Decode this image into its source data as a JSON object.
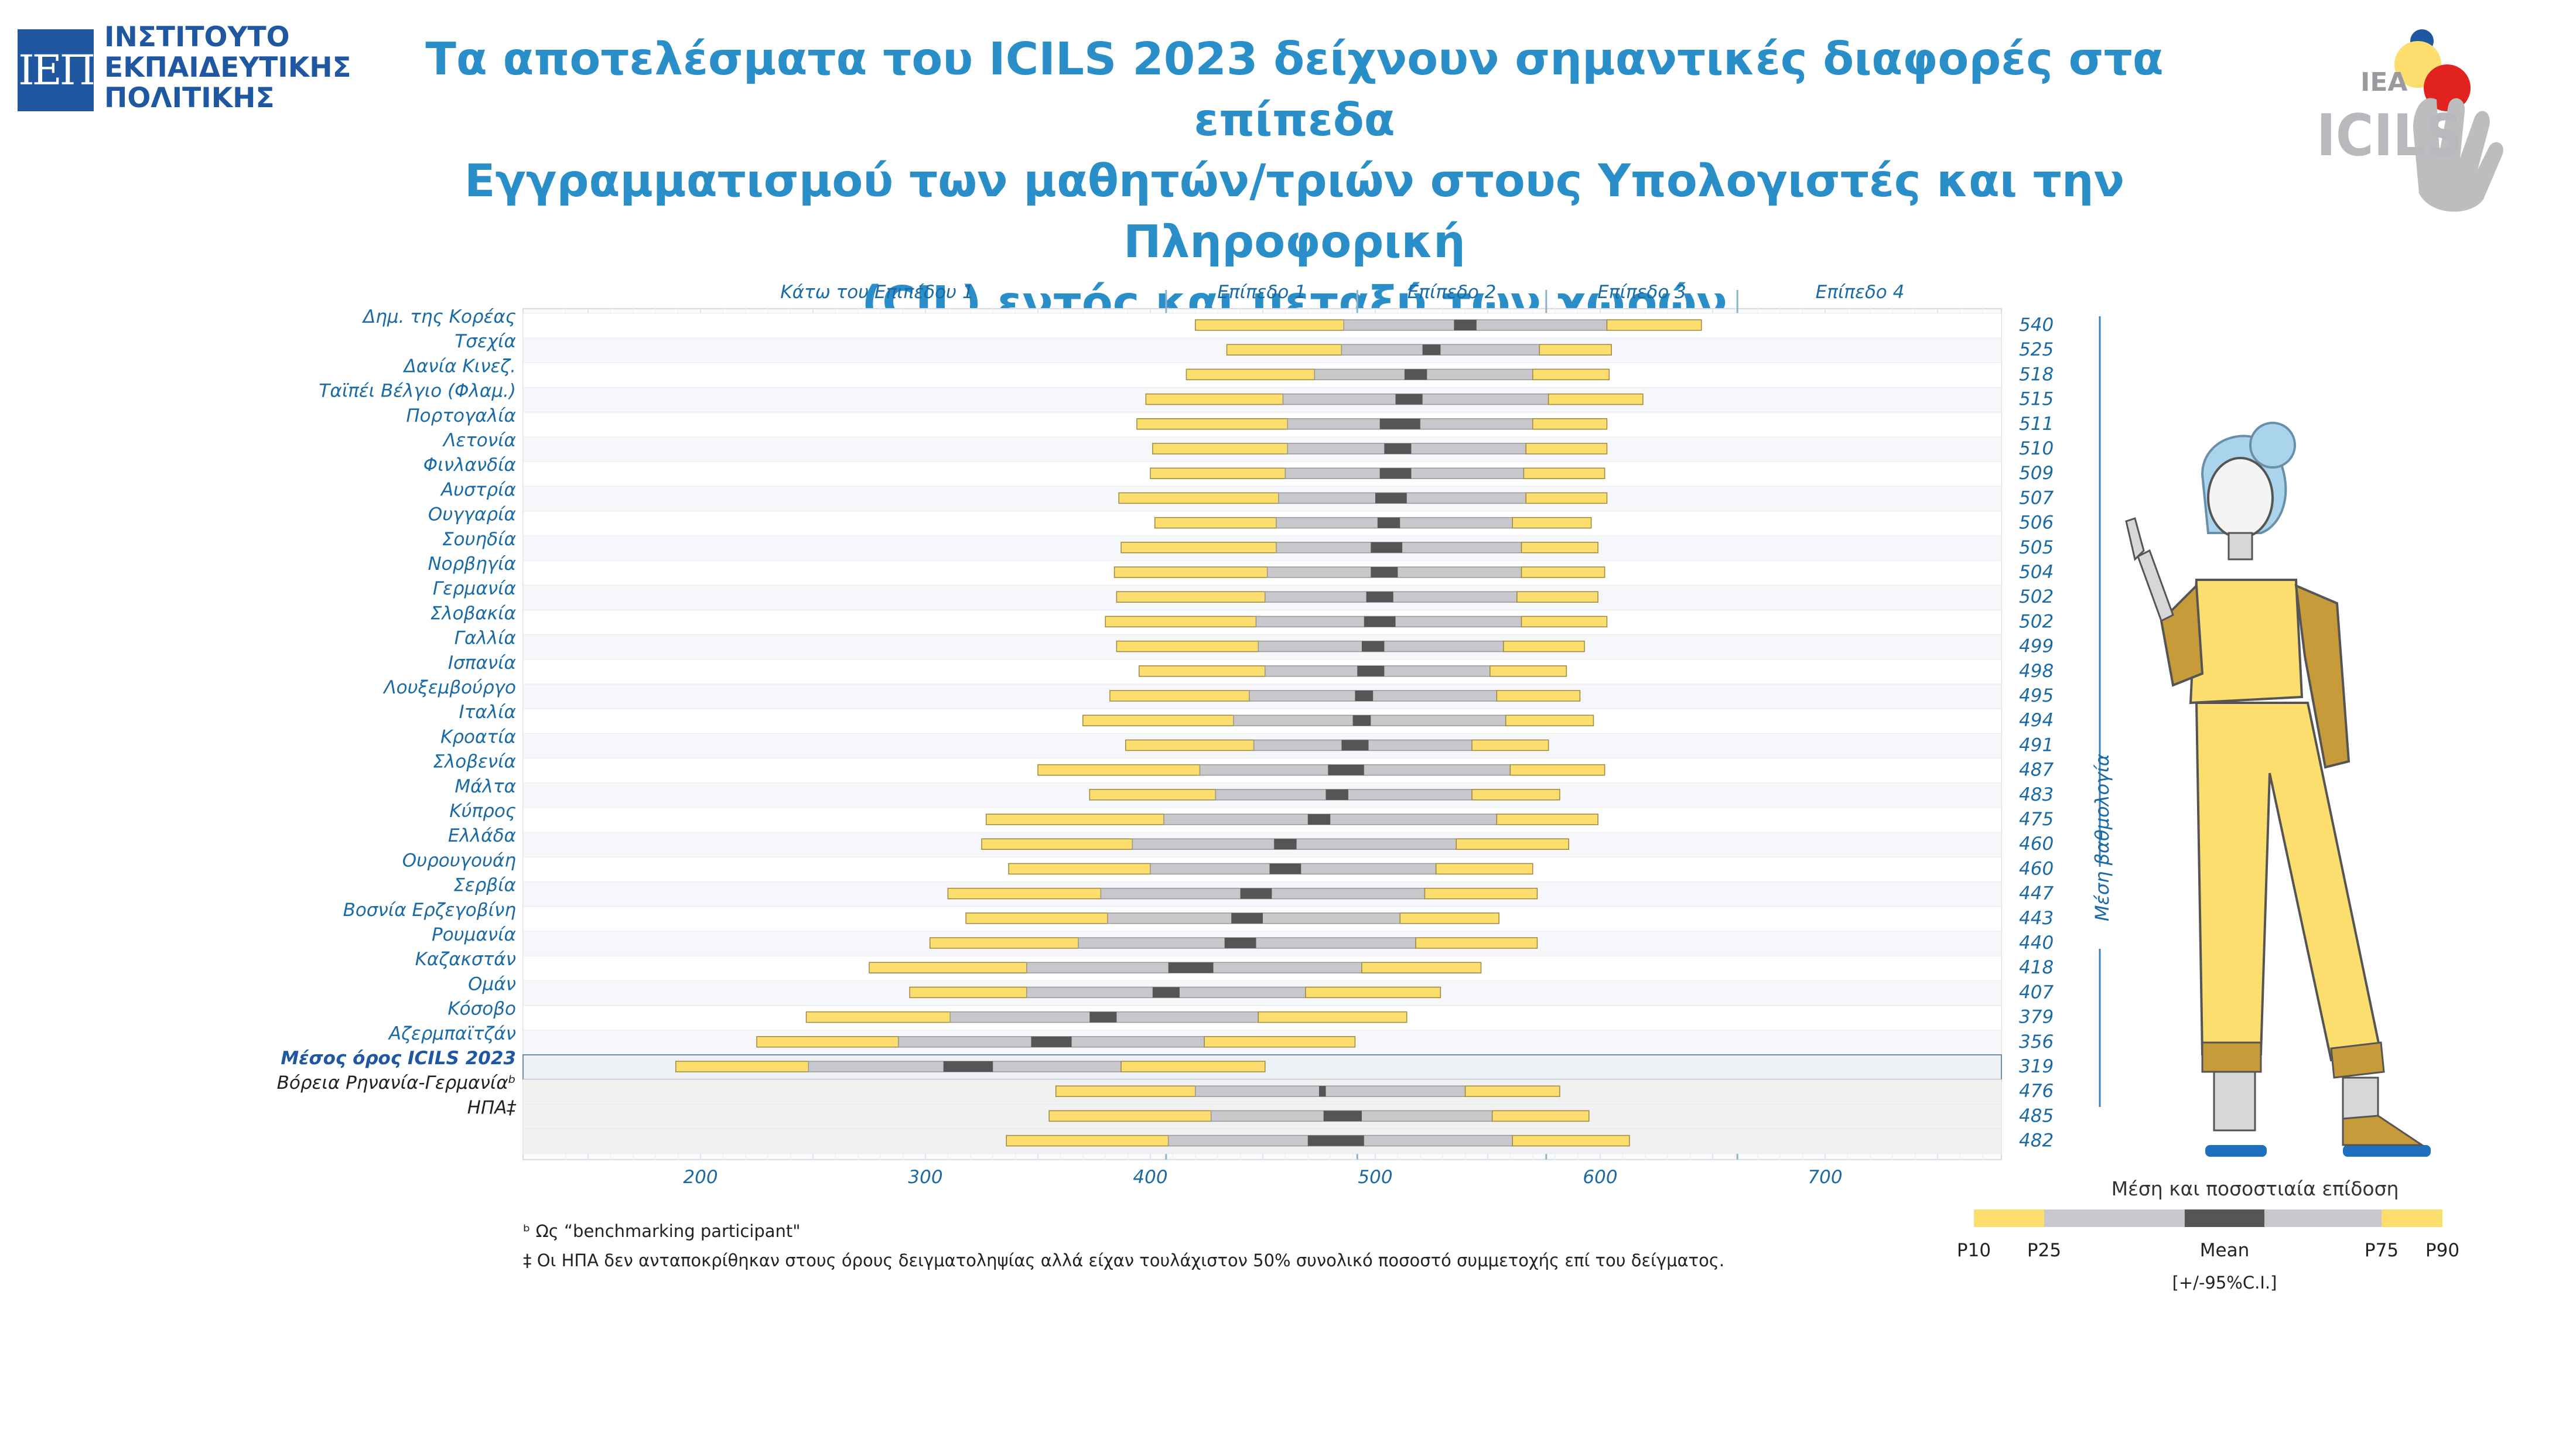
{
  "header": {
    "logo_mark": "ΙΕΠ",
    "logo_lines": [
      "ΙΝΣΤΙΤΟΥΤΟ",
      "ΕΚΠΑΙΔΕΥΤΙΚΗΣ",
      "ΠΟΛΙΤΙΚΗΣ"
    ],
    "title_lines": [
      "Τα αποτελέσματα του ICILS 2023 δείχνουν σημαντικές διαφορές στα επίπεδα",
      "Εγγραμματισμού των μαθητών/τριών στους Υπολογιστές και την Πληροφορική",
      "(CIL) εντός και μεταξύ των χωρών"
    ],
    "brand_logo": {
      "org": "IEA",
      "name": "ICILS"
    }
  },
  "colors": {
    "p10_p25": "#fbde6e",
    "p25_p75": "#c8c8cc",
    "ci": "#555555",
    "title": "#2a8fc9",
    "label": "#1a6aa6"
  },
  "chart_data": {
    "type": "bar",
    "subtype": "percentile-range",
    "x_ticks": [
      200,
      300,
      400,
      500,
      600,
      700
    ],
    "xlim": [
      130,
      775
    ],
    "proficiency_levels": [
      {
        "label": "Κάτω του Επιπέδου 1",
        "from": 130,
        "to": 407
      },
      {
        "label": "Επίπεδο 1",
        "from": 407,
        "to": 492
      },
      {
        "label": "Επίπεδο 2",
        "from": 492,
        "to": 576
      },
      {
        "label": "Επίπεδο 3",
        "from": 576,
        "to": 661
      },
      {
        "label": "Επίπεδο 4",
        "from": 661,
        "to": 775
      }
    ],
    "level_cutpoints": [
      407,
      492,
      576,
      661
    ],
    "mean_axis_label": "Μέση βαθμολογία",
    "rows": [
      {
        "country": "Δημ. της Κορέας",
        "mean": 540,
        "p10": 420,
        "p25": 486,
        "ci_lo": 535,
        "ci_hi": 545,
        "p75": 603,
        "p90": 645
      },
      {
        "country": "Τσεχία",
        "mean": 525,
        "p10": 434,
        "p25": 485,
        "ci_lo": 521,
        "ci_hi": 529,
        "p75": 573,
        "p90": 605
      },
      {
        "country": "Δανία  Κινεζ.",
        "mean": 518,
        "p10": 416,
        "p25": 473,
        "ci_lo": 513,
        "ci_hi": 523,
        "p75": 570,
        "p90": 604
      },
      {
        "country": "Ταϊπέι Βέλγιο (Φλαμ.)",
        "mean": 515,
        "p10": 398,
        "p25": 459,
        "ci_lo": 509,
        "ci_hi": 521,
        "p75": 577,
        "p90": 619
      },
      {
        "country": "Πορτογαλία",
        "mean": 511,
        "p10": 394,
        "p25": 461,
        "ci_lo": 502,
        "ci_hi": 520,
        "p75": 570,
        "p90": 603
      },
      {
        "country": "Λετονία",
        "mean": 510,
        "p10": 401,
        "p25": 461,
        "ci_lo": 504,
        "ci_hi": 516,
        "p75": 567,
        "p90": 603
      },
      {
        "country": "Φινλανδία",
        "mean": 509,
        "p10": 400,
        "p25": 460,
        "ci_lo": 502,
        "ci_hi": 516,
        "p75": 566,
        "p90": 602
      },
      {
        "country": "Αυστρία",
        "mean": 507,
        "p10": 386,
        "p25": 457,
        "ci_lo": 500,
        "ci_hi": 514,
        "p75": 567,
        "p90": 603
      },
      {
        "country": "Ουγγαρία",
        "mean": 506,
        "p10": 402,
        "p25": 456,
        "ci_lo": 501,
        "ci_hi": 511,
        "p75": 561,
        "p90": 596
      },
      {
        "country": "Σουηδία",
        "mean": 505,
        "p10": 387,
        "p25": 456,
        "ci_lo": 498,
        "ci_hi": 512,
        "p75": 565,
        "p90": 599
      },
      {
        "country": "Νορβηγία",
        "mean": 504,
        "p10": 384,
        "p25": 452,
        "ci_lo": 498,
        "ci_hi": 510,
        "p75": 565,
        "p90": 602
      },
      {
        "country": "Γερμανία",
        "mean": 502,
        "p10": 385,
        "p25": 451,
        "ci_lo": 496,
        "ci_hi": 508,
        "p75": 563,
        "p90": 599
      },
      {
        "country": "Σλοβακία",
        "mean": 502,
        "p10": 380,
        "p25": 447,
        "ci_lo": 495,
        "ci_hi": 509,
        "p75": 565,
        "p90": 603
      },
      {
        "country": "Γαλλία",
        "mean": 499,
        "p10": 385,
        "p25": 448,
        "ci_lo": 494,
        "ci_hi": 504,
        "p75": 557,
        "p90": 593
      },
      {
        "country": "Ισπανία",
        "mean": 498,
        "p10": 395,
        "p25": 451,
        "ci_lo": 492,
        "ci_hi": 504,
        "p75": 551,
        "p90": 585
      },
      {
        "country": "Λουξεμβούργο",
        "mean": 495,
        "p10": 382,
        "p25": 444,
        "ci_lo": 491,
        "ci_hi": 499,
        "p75": 554,
        "p90": 591
      },
      {
        "country": "Ιταλία",
        "mean": 494,
        "p10": 370,
        "p25": 437,
        "ci_lo": 490,
        "ci_hi": 498,
        "p75": 558,
        "p90": 597
      },
      {
        "country": "Κροατία",
        "mean": 491,
        "p10": 389,
        "p25": 446,
        "ci_lo": 485,
        "ci_hi": 497,
        "p75": 543,
        "p90": 577
      },
      {
        "country": "Σλοβενία",
        "mean": 487,
        "p10": 350,
        "p25": 422,
        "ci_lo": 479,
        "ci_hi": 495,
        "p75": 560,
        "p90": 602
      },
      {
        "country": "Μάλτα",
        "mean": 483,
        "p10": 373,
        "p25": 429,
        "ci_lo": 478,
        "ci_hi": 488,
        "p75": 543,
        "p90": 582
      },
      {
        "country": "Κύπρος",
        "mean": 475,
        "p10": 327,
        "p25": 406,
        "ci_lo": 470,
        "ci_hi": 480,
        "p75": 554,
        "p90": 599
      },
      {
        "country": "Ελλάδα",
        "mean": 460,
        "p10": 325,
        "p25": 392,
        "ci_lo": 455,
        "ci_hi": 465,
        "p75": 536,
        "p90": 586
      },
      {
        "country": "Ουρουγουάη",
        "mean": 460,
        "p10": 337,
        "p25": 400,
        "ci_lo": 453,
        "ci_hi": 467,
        "p75": 527,
        "p90": 570
      },
      {
        "country": "Σερβία",
        "mean": 447,
        "p10": 310,
        "p25": 378,
        "ci_lo": 440,
        "ci_hi": 454,
        "p75": 522,
        "p90": 572
      },
      {
        "country": "Βοσνία Ερζεγοβίνη",
        "mean": 443,
        "p10": 318,
        "p25": 381,
        "ci_lo": 436,
        "ci_hi": 450,
        "p75": 511,
        "p90": 555
      },
      {
        "country": "Ρουμανία",
        "mean": 440,
        "p10": 302,
        "p25": 368,
        "ci_lo": 433,
        "ci_hi": 447,
        "p75": 518,
        "p90": 572
      },
      {
        "country": "Καζακστάν",
        "mean": 418,
        "p10": 275,
        "p25": 345,
        "ci_lo": 408,
        "ci_hi": 428,
        "p75": 494,
        "p90": 547
      },
      {
        "country": "Ομάν",
        "mean": 407,
        "p10": 293,
        "p25": 345,
        "ci_lo": 401,
        "ci_hi": 413,
        "p75": 469,
        "p90": 529
      },
      {
        "country": "Κόσοβο",
        "mean": 379,
        "p10": 247,
        "p25": 311,
        "ci_lo": 373,
        "ci_hi": 385,
        "p75": 448,
        "p90": 514
      },
      {
        "country": "Αζερμπαϊτζάν",
        "mean": 356,
        "p10": 225,
        "p25": 288,
        "ci_lo": 347,
        "ci_hi": 365,
        "p75": 424,
        "p90": 491
      },
      {
        "country": "Μέσος όρος ICILS 2023",
        "mean": 319,
        "p10": 189,
        "p25": 248,
        "ci_lo": 308,
        "ci_hi": 330,
        "p75": 387,
        "p90": 451
      },
      {
        "country": "Βόρεια Ρηνανία-Γερμανίαᵇ",
        "mean": 476,
        "p10": 358,
        "p25": 420,
        "ci_lo": 475,
        "ci_hi": 478,
        "p75": 540,
        "p90": 582
      },
      {
        "country": "ΗΠΑ‡",
        "mean": 485,
        "p10": 355,
        "p25": 427,
        "ci_lo": 477,
        "ci_hi": 494,
        "p75": 552,
        "p90": 595
      },
      {
        "country": "",
        "mean": 482,
        "p10": 336,
        "p25": 408,
        "ci_lo": 470,
        "ci_hi": 495,
        "p75": 561,
        "p90": 613
      }
    ],
    "row_styles": {
      "30": "average",
      "31": "benchmark",
      "32": "benchmark",
      "33": "benchmark"
    },
    "legend": {
      "title": "Μέση και ποσοστιαία επίδοση",
      "labels": [
        "P10",
        "P25",
        "Mean",
        "P75",
        "P90"
      ],
      "ci_note": "[+/-95%C.I.]"
    }
  },
  "footnotes": [
    "ᵇ Ως “benchmarking participant\"",
    "‡  Οι ΗΠΑ δεν ανταποκρίθηκαν στους όρους δειγματοληψίας αλλά είχαν τουλάχιστον 50% συνολικό ποσοστό συμμετοχής επί του δείγματος."
  ]
}
